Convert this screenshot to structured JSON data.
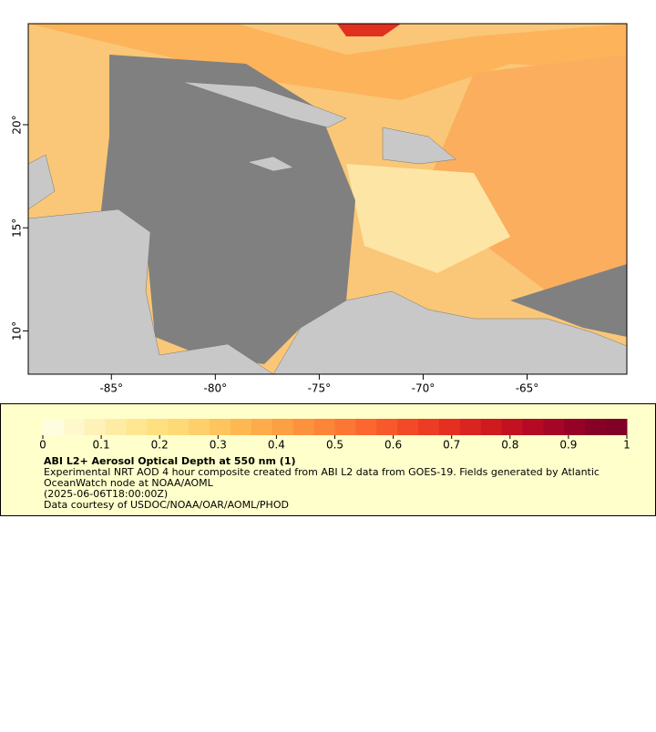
{
  "chart_data": {
    "type": "map",
    "xlim": [
      -89,
      -60.2
    ],
    "ylim": [
      7.9,
      24.9
    ],
    "xticks": [
      {
        "value": -85,
        "label": "-85°"
      },
      {
        "value": -80,
        "label": "-80°"
      },
      {
        "value": -75,
        "label": "-75°"
      },
      {
        "value": -70,
        "label": "-70°"
      },
      {
        "value": -65,
        "label": "-65°"
      }
    ],
    "yticks": [
      {
        "value": 10,
        "label": "10°"
      },
      {
        "value": 15,
        "label": "15°"
      },
      {
        "value": 20,
        "label": "20°"
      }
    ],
    "colorbar": {
      "lim": [
        0,
        1
      ],
      "ticks": [
        0,
        0.1,
        0.2,
        0.3,
        0.4,
        0.5,
        0.6,
        0.7,
        0.8,
        0.9,
        1
      ],
      "colors": [
        "#fffde0",
        "#fff8cc",
        "#fff2b8",
        "#ffeca4",
        "#ffe690",
        "#fee07f",
        "#fed976",
        "#fecf6a",
        "#fec45e",
        "#feb852",
        "#feab49",
        "#fd9f43",
        "#fd923e",
        "#fd8539",
        "#fc7634",
        "#fc672f",
        "#f8592b",
        "#f24a27",
        "#ec3c23",
        "#e42f21",
        "#da2420",
        "#cf1a20",
        "#c21121",
        "#b40a23",
        "#a60625",
        "#960226",
        "#870026",
        "#800026"
      ]
    },
    "title": "ABI L2+ Aerosol Optical Depth at 550 nm (1)",
    "description": [
      "Experimental NRT AOD 4 hour composite created from ABI L2 data from GOES-19. Fields generated by Atlantic",
      "OceanWatch node at NOAA/AOML",
      "(2025-06-06T18:00:00Z)",
      "Data courtesy of USDOC/NOAA/OAR/AOML/PHOD"
    ]
  }
}
